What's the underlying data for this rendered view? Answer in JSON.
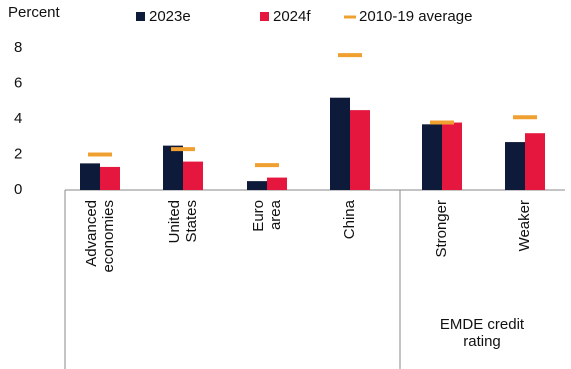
{
  "chart_data": {
    "type": "bar",
    "y_label": "Percent",
    "categories": [
      "Advanced economies",
      "United States",
      "Euro area",
      "China",
      "Stronger",
      "Weaker"
    ],
    "group_label": "EMDE credit rating",
    "series": [
      {
        "name": "2023e",
        "color": "#0d1a3a",
        "values": [
          1.5,
          2.5,
          0.5,
          5.2,
          3.7,
          2.7
        ]
      },
      {
        "name": "2024f",
        "color": "#e5173f",
        "values": [
          1.3,
          1.6,
          0.7,
          4.5,
          3.8,
          3.2
        ]
      },
      {
        "name": "2010-19 average",
        "color": "#f0a030",
        "marker": "dash",
        "values": [
          2.0,
          2.3,
          1.4,
          7.6,
          3.8,
          4.1
        ]
      }
    ],
    "ylim": [
      0,
      8
    ],
    "yticks": [
      0,
      2,
      4,
      6,
      8
    ]
  }
}
